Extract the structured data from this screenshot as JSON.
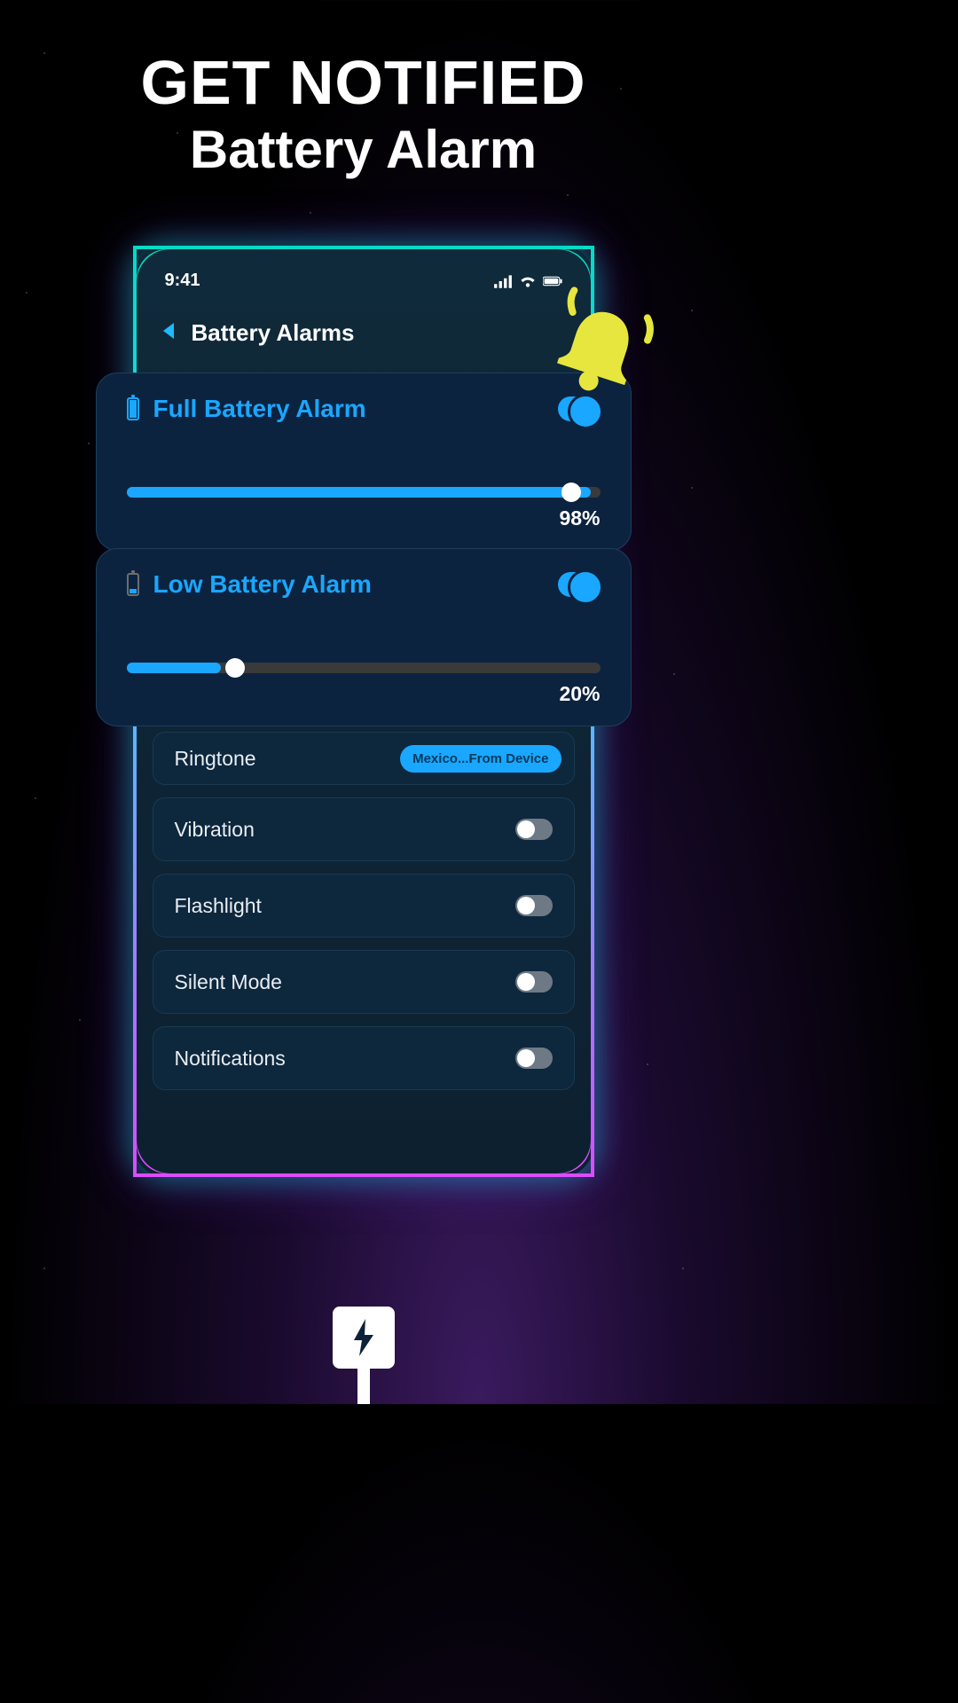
{
  "hero": {
    "line1": "GET NOTIFIED",
    "line2": "Battery Alarm"
  },
  "statusbar": {
    "time": "9:41"
  },
  "nav": {
    "title": "Battery Alarms"
  },
  "full_alarm": {
    "title": "Full Battery Alarm",
    "enabled": true,
    "percent": 98,
    "percent_label": "98%",
    "fill_color": "#1aa7ff",
    "track_color": "#3a3a3a"
  },
  "low_alarm": {
    "title": "Low Battery Alarm",
    "enabled": true,
    "percent": 20,
    "percent_label": "20%",
    "fill_color": "#1aa7ff",
    "track_color": "#3a3a3a"
  },
  "ringtone": {
    "label": "Ringtone",
    "value": "Mexico...From Device"
  },
  "settings": {
    "vibration": "Vibration",
    "flashlight": "Flashlight",
    "silent": "Silent Mode",
    "notifications": "Notifications"
  },
  "colors": {
    "accent": "#1aa7ff",
    "card_bg": "#0c2340",
    "phone_bg": "#0f2a3a",
    "bell": "#e6e63e"
  }
}
